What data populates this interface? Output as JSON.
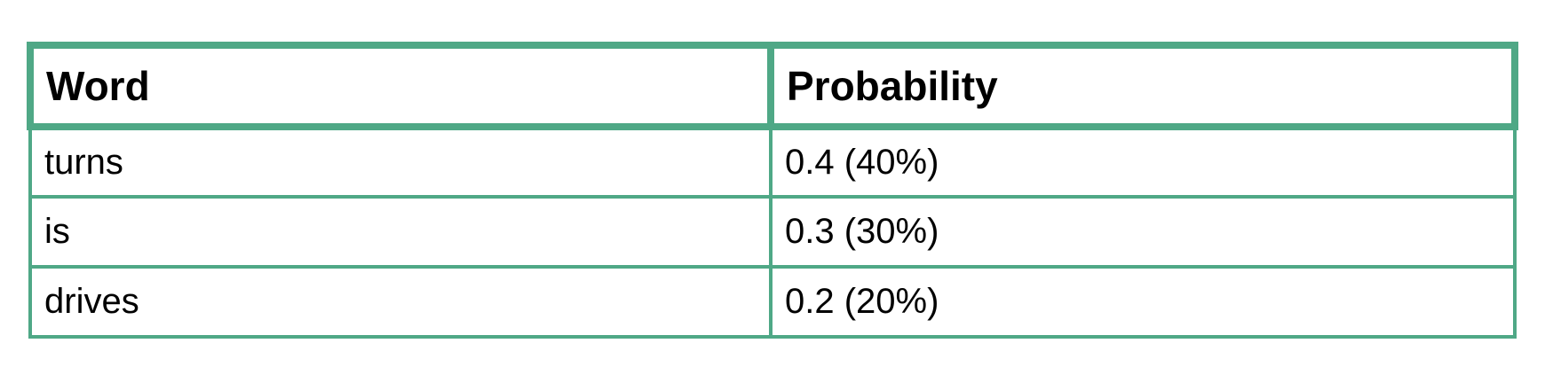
{
  "table": {
    "headers": [
      "Word",
      "Probability"
    ],
    "rows": [
      {
        "word": "turns",
        "probability": "0.4 (40%)"
      },
      {
        "word": "is",
        "probability": "0.3 (30%)"
      },
      {
        "word": "drives",
        "probability": "0.2 (20%)"
      }
    ]
  },
  "colors": {
    "border": "#4fa886",
    "text": "#000000",
    "background": "#ffffff"
  }
}
